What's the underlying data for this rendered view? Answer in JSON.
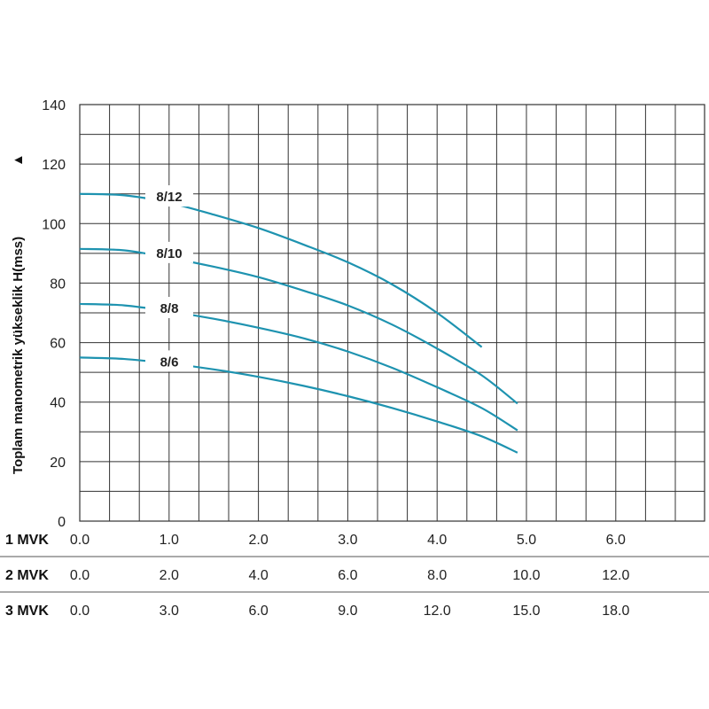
{
  "chart_data": {
    "type": "line",
    "title": "",
    "ylabel": "Toplam manometrik yükseklik H(mss)",
    "ylabel_arrow": "▲",
    "ylim": [
      0,
      140
    ],
    "yticks": [
      "0",
      "20",
      "40",
      "60",
      "80",
      "100",
      "120",
      "140"
    ],
    "xlim": [
      0,
      7
    ],
    "x_axes": [
      {
        "label": "1 MVK",
        "ticks": [
          "0.0",
          "1.0",
          "2.0",
          "3.0",
          "4.0",
          "5.0",
          "6.0"
        ]
      },
      {
        "label": "2 MVK",
        "ticks": [
          "0.0",
          "2.0",
          "4.0",
          "6.0",
          "8.0",
          "10.0",
          "12.0"
        ]
      },
      {
        "label": "3 MVK",
        "ticks": [
          "0.0",
          "3.0",
          "6.0",
          "9.0",
          "12.0",
          "15.0",
          "18.0"
        ]
      }
    ],
    "grid": true,
    "line_color": "#1e93b0",
    "series": [
      {
        "name": "8/12",
        "x": [
          0,
          0.5,
          1.0,
          1.5,
          2.0,
          2.5,
          3.0,
          3.5,
          4.0,
          4.5
        ],
        "y": [
          110,
          109.5,
          107,
          103,
          98.5,
          93,
          87,
          79.5,
          70,
          58.5
        ]
      },
      {
        "name": "8/10",
        "x": [
          0,
          0.5,
          1.0,
          1.5,
          2.0,
          2.5,
          3.0,
          3.5,
          4.0,
          4.5,
          4.9
        ],
        "y": [
          91.5,
          91,
          88.5,
          85.5,
          82,
          77.5,
          72.5,
          66,
          58,
          49,
          39.5
        ]
      },
      {
        "name": "8/8",
        "x": [
          0,
          0.5,
          1.0,
          1.5,
          2.0,
          2.5,
          3.0,
          3.5,
          4.0,
          4.5,
          4.9
        ],
        "y": [
          73,
          72.5,
          70.5,
          68,
          65,
          61.5,
          57,
          51.5,
          45,
          38,
          30.5
        ]
      },
      {
        "name": "8/6",
        "x": [
          0,
          0.5,
          1.0,
          1.5,
          2.0,
          2.5,
          3.0,
          3.5,
          4.0,
          4.5,
          4.9
        ],
        "y": [
          55,
          54.5,
          53,
          51,
          48.5,
          45.5,
          42,
          38,
          33.5,
          28.5,
          23
        ]
      }
    ]
  }
}
